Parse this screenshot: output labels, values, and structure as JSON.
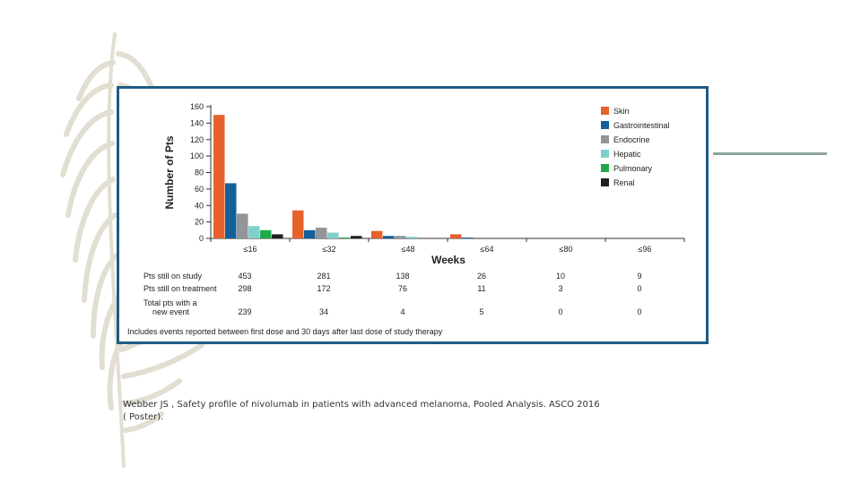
{
  "colors": {
    "frame": "#1d5c86",
    "accent_line": "#8fa59b",
    "feather": "#d9d6c6"
  },
  "chart_data": {
    "type": "bar",
    "title": "",
    "xlabel": "Weeks",
    "ylabel": "Number of Pts",
    "ylim": [
      0,
      160
    ],
    "yticks": [
      0,
      20,
      40,
      60,
      80,
      100,
      120,
      140,
      160
    ],
    "categories": [
      "≤16",
      "≤32",
      "≤48",
      "≤64",
      "≤80",
      "≤96"
    ],
    "series": [
      {
        "name": "Skin",
        "color": "#e8612c",
        "values": [
          150,
          34,
          9,
          5,
          0,
          0
        ]
      },
      {
        "name": "Gastrointestinal",
        "color": "#135f9a",
        "values": [
          67,
          10,
          3,
          1,
          0,
          0
        ]
      },
      {
        "name": "Endocrine",
        "color": "#939598",
        "values": [
          30,
          13,
          3,
          0,
          0,
          0
        ]
      },
      {
        "name": "Hepatic",
        "color": "#7fcfcb",
        "values": [
          15,
          7,
          2,
          0,
          0,
          0
        ]
      },
      {
        "name": "Pulmonary",
        "color": "#1fa84c",
        "values": [
          10,
          1,
          0,
          0,
          0,
          0
        ]
      },
      {
        "name": "Renal",
        "color": "#231f20",
        "values": [
          5,
          3,
          0,
          0,
          0,
          0
        ]
      }
    ],
    "legend_position": "top-right",
    "table": {
      "rows": [
        {
          "label_lines": [
            "Pts still on study"
          ],
          "values": [
            "453",
            "281",
            "138",
            "26",
            "10",
            "9"
          ]
        },
        {
          "label_lines": [
            "Pts still on treatment"
          ],
          "values": [
            "298",
            "172",
            "76",
            "11",
            "3",
            "0"
          ]
        },
        {
          "label_lines": [
            "Total pts with a",
            "new event"
          ],
          "values": [
            "239",
            "34",
            "4",
            "5",
            "0",
            "0"
          ]
        }
      ]
    },
    "footnote": "Includes events reported between first dose and 30 days after last dose of study therapy"
  },
  "citation": {
    "line1": "Webber JS , Safety profile of nivolumab in patients with advanced melanoma, Pooled Analysis. ASCO 2016",
    "line2": "( Poster)."
  }
}
